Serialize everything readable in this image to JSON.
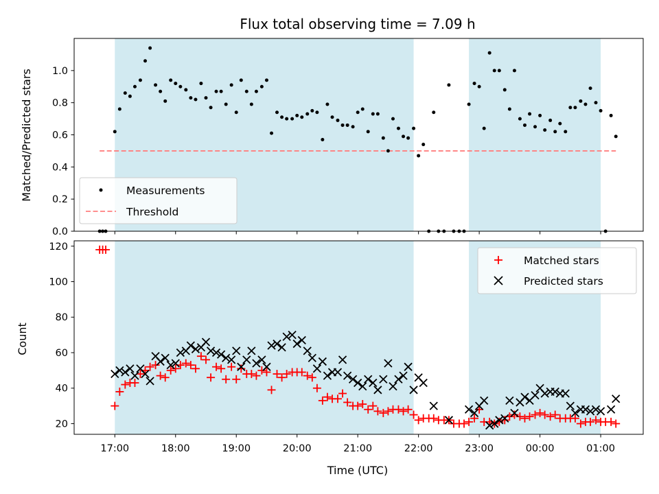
{
  "chart_data": {
    "type": "scatter",
    "title": "Flux total observing time = 7.09 h",
    "xlabel": "Time (UTC)",
    "x_ticks": [
      "17:00",
      "18:00",
      "19:00",
      "20:00",
      "21:00",
      "22:00",
      "23:00",
      "00:00",
      "01:00"
    ],
    "x_range_hours": [
      16.33,
      25.7
    ],
    "shaded_intervals_hours": [
      [
        17.0,
        21.92
      ],
      [
        22.83,
        25.0
      ]
    ],
    "shade_color": "#add8e6",
    "top": {
      "ylabel": "Matched/Predicted stars",
      "ylim": [
        0,
        1.2
      ],
      "yticks": [
        "0.0",
        "0.2",
        "0.4",
        "0.6",
        "0.8",
        "1.0"
      ],
      "legend_position": "lower-left",
      "series": [
        {
          "name": "Measurements",
          "color": "#000000",
          "marker": "dot",
          "x": [
            16.75,
            16.8,
            16.85,
            17.0,
            17.08,
            17.17,
            17.25,
            17.33,
            17.42,
            17.5,
            17.58,
            17.67,
            17.75,
            17.83,
            17.92,
            18.0,
            18.08,
            18.17,
            18.25,
            18.33,
            18.42,
            18.5,
            18.58,
            18.67,
            18.75,
            18.83,
            18.92,
            19.0,
            19.08,
            19.17,
            19.25,
            19.33,
            19.42,
            19.5,
            19.58,
            19.67,
            19.75,
            19.83,
            19.92,
            20.0,
            20.08,
            20.17,
            20.25,
            20.33,
            20.42,
            20.5,
            20.58,
            20.67,
            20.75,
            20.83,
            20.92,
            21.0,
            21.08,
            21.17,
            21.25,
            21.33,
            21.42,
            21.5,
            21.58,
            21.67,
            21.75,
            21.83,
            21.92,
            22.0,
            22.08,
            22.17,
            22.25,
            22.33,
            22.42,
            22.5,
            22.58,
            22.67,
            22.75,
            22.83,
            22.92,
            23.0,
            23.08,
            23.17,
            23.25,
            23.33,
            23.42,
            23.5,
            23.58,
            23.67,
            23.75,
            23.83,
            23.92,
            24.0,
            24.08,
            24.17,
            24.25,
            24.33,
            24.42,
            24.5,
            24.58,
            24.67,
            24.75,
            24.83,
            24.92,
            25.0,
            25.08,
            25.17,
            25.25
          ],
          "y": [
            0.0,
            0.0,
            0.0,
            0.62,
            0.76,
            0.86,
            0.84,
            0.9,
            0.94,
            1.06,
            1.14,
            0.91,
            0.87,
            0.81,
            0.94,
            0.92,
            0.9,
            0.88,
            0.83,
            0.82,
            0.92,
            0.83,
            0.77,
            0.87,
            0.87,
            0.79,
            0.91,
            0.74,
            0.94,
            0.87,
            0.79,
            0.87,
            0.9,
            0.94,
            0.61,
            0.74,
            0.71,
            0.7,
            0.7,
            0.72,
            0.71,
            0.73,
            0.75,
            0.74,
            0.57,
            0.79,
            0.71,
            0.69,
            0.66,
            0.66,
            0.65,
            0.74,
            0.76,
            0.62,
            0.73,
            0.73,
            0.58,
            0.5,
            0.7,
            0.64,
            0.59,
            0.58,
            0.64,
            0.47,
            0.54,
            0.0,
            0.74,
            0.0,
            0.0,
            0.91,
            0.0,
            0.0,
            0.0,
            0.79,
            0.92,
            0.9,
            0.64,
            1.11,
            1.0,
            1.0,
            0.88,
            0.76,
            1.0,
            0.7,
            0.66,
            0.73,
            0.65,
            0.72,
            0.63,
            0.69,
            0.62,
            0.67,
            0.62,
            0.77,
            0.77,
            0.81,
            0.79,
            0.89,
            0.8,
            0.75,
            0.0,
            0.72,
            0.59
          ]
        },
        {
          "name": "Threshold",
          "color": "#ff7f7f",
          "style": "dashed",
          "x": [
            16.75,
            25.25
          ],
          "y": [
            0.5,
            0.5
          ]
        }
      ]
    },
    "bottom": {
      "ylabel": "Count",
      "ylim": [
        14,
        123
      ],
      "yticks": [
        "20",
        "40",
        "60",
        "80",
        "100",
        "120"
      ],
      "legend_position": "upper-right",
      "series": [
        {
          "name": "Matched stars",
          "color": "#ff0000",
          "marker": "plus",
          "x": [
            16.75,
            16.8,
            16.85,
            17.0,
            17.08,
            17.17,
            17.25,
            17.33,
            17.42,
            17.5,
            17.58,
            17.67,
            17.75,
            17.83,
            17.92,
            18.0,
            18.08,
            18.17,
            18.25,
            18.33,
            18.42,
            18.5,
            18.58,
            18.67,
            18.75,
            18.83,
            18.92,
            19.0,
            19.08,
            19.17,
            19.25,
            19.33,
            19.42,
            19.5,
            19.58,
            19.67,
            19.75,
            19.83,
            19.92,
            20.0,
            20.08,
            20.17,
            20.25,
            20.33,
            20.42,
            20.5,
            20.58,
            20.67,
            20.75,
            20.83,
            20.92,
            21.0,
            21.08,
            21.17,
            21.25,
            21.33,
            21.42,
            21.5,
            21.58,
            21.67,
            21.75,
            21.83,
            21.92,
            22.0,
            22.08,
            22.17,
            22.25,
            22.33,
            22.42,
            22.5,
            22.58,
            22.67,
            22.75,
            22.83,
            22.92,
            23.0,
            23.08,
            23.17,
            23.25,
            23.33,
            23.42,
            23.5,
            23.58,
            23.67,
            23.75,
            23.83,
            23.92,
            24.0,
            24.08,
            24.17,
            24.25,
            24.33,
            24.42,
            24.5,
            24.58,
            24.67,
            24.75,
            24.83,
            24.92,
            25.0,
            25.08,
            25.17,
            25.25
          ],
          "y": [
            118,
            118,
            118,
            30,
            38,
            42,
            43,
            43,
            48,
            50,
            52,
            53,
            47,
            46,
            50,
            51,
            53,
            54,
            53,
            51,
            58,
            56,
            46,
            52,
            51,
            45,
            52,
            45,
            51,
            48,
            48,
            47,
            50,
            49,
            39,
            48,
            46,
            48,
            49,
            49,
            49,
            47,
            46,
            40,
            33,
            35,
            34,
            34,
            37,
            32,
            30,
            30,
            31,
            28,
            30,
            27,
            26,
            27,
            28,
            28,
            27,
            28,
            25,
            22,
            23,
            23,
            23,
            22,
            22,
            22,
            20,
            20,
            20,
            21,
            23,
            28,
            21,
            21,
            20,
            21,
            22,
            24,
            25,
            24,
            23,
            24,
            25,
            26,
            25,
            24,
            25,
            23,
            23,
            23,
            23,
            20,
            21,
            21,
            22,
            21,
            21,
            21,
            20
          ]
        },
        {
          "name": "Predicted stars",
          "color": "#000000",
          "marker": "cross",
          "x": [
            17.0,
            17.08,
            17.17,
            17.25,
            17.33,
            17.42,
            17.5,
            17.58,
            17.67,
            17.75,
            17.83,
            17.92,
            18.0,
            18.08,
            18.17,
            18.25,
            18.33,
            18.42,
            18.5,
            18.58,
            18.67,
            18.75,
            18.83,
            18.92,
            19.0,
            19.08,
            19.17,
            19.25,
            19.33,
            19.42,
            19.5,
            19.58,
            19.67,
            19.75,
            19.83,
            19.92,
            20.0,
            20.08,
            20.17,
            20.25,
            20.33,
            20.42,
            20.5,
            20.58,
            20.67,
            20.75,
            20.83,
            20.92,
            21.0,
            21.08,
            21.17,
            21.25,
            21.33,
            21.42,
            21.5,
            21.58,
            21.67,
            21.75,
            21.83,
            21.92,
            22.0,
            22.08,
            22.25,
            22.5,
            22.83,
            22.92,
            23.0,
            23.08,
            23.17,
            23.25,
            23.33,
            23.42,
            23.5,
            23.58,
            23.67,
            23.75,
            23.83,
            23.92,
            24.0,
            24.08,
            24.17,
            24.25,
            24.33,
            24.42,
            24.5,
            24.58,
            24.67,
            24.75,
            24.83,
            24.92,
            25.0,
            25.17,
            25.25
          ],
          "y": [
            48,
            50,
            49,
            51,
            47,
            51,
            48,
            44,
            58,
            55,
            57,
            53,
            54,
            60,
            61,
            64,
            62,
            63,
            66,
            61,
            60,
            59,
            57,
            56,
            61,
            52,
            56,
            61,
            54,
            56,
            52,
            64,
            65,
            63,
            69,
            70,
            65,
            67,
            61,
            57,
            51,
            55,
            47,
            49,
            49,
            56,
            47,
            45,
            43,
            41,
            45,
            43,
            39,
            45,
            54,
            41,
            45,
            47,
            52,
            39,
            46,
            43,
            30,
            22,
            28,
            26,
            30,
            33,
            19,
            20,
            22,
            23,
            33,
            26,
            32,
            35,
            33,
            36,
            40,
            37,
            38,
            38,
            37,
            37,
            30,
            26,
            28,
            28,
            27,
            28,
            27,
            28,
            34
          ]
        }
      ]
    }
  }
}
